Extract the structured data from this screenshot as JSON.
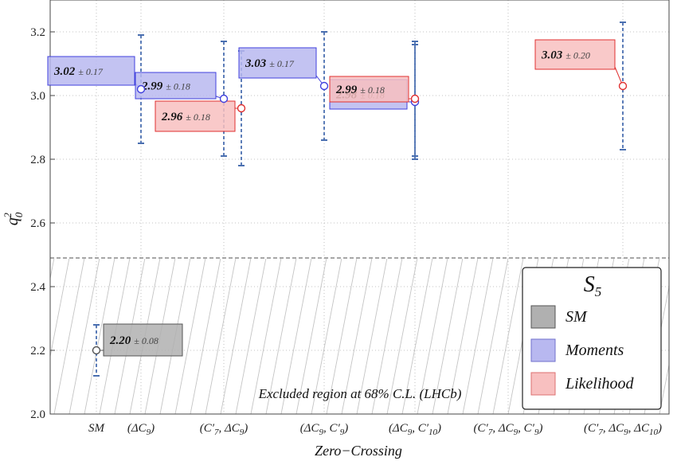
{
  "chart_data": {
    "type": "scatter",
    "title": "",
    "xlabel": "Zero−Crossing",
    "ylabel_main": "q",
    "ylabel_sup": "2",
    "ylabel_sub": "0",
    "ylim": [
      2.0,
      3.3
    ],
    "yticks": [
      "2.0",
      "2.2",
      "2.4",
      "2.6",
      "2.8",
      "3.0",
      "3.2"
    ],
    "categories": [
      {
        "label": "SM"
      },
      {
        "label": "(ΔC",
        "sub": "9",
        "tail": ")"
      },
      {
        "label": "(C′",
        "sub": "7",
        "tail": ", ΔC",
        "sub2": "9",
        "tail2": ")"
      },
      {
        "label": "(ΔC",
        "sub": "9",
        "tail": ", C′",
        "sub2": "9",
        "tail2": ")"
      },
      {
        "label": "(ΔC",
        "sub": "9",
        "tail": ", C′",
        "sub2": "10",
        "tail2": ")"
      },
      {
        "label": "(C′",
        "sub": "7",
        "tail": ", ΔC",
        "sub2": "9",
        "tail2": ", C′",
        "sub3": "9",
        "tail3": ")"
      },
      {
        "label": "(C′",
        "sub": "7",
        "tail": ", ΔC",
        "sub2": "9",
        "tail2": ", ΔC",
        "sub3": "10",
        "tail3": ")"
      }
    ],
    "series": [
      {
        "name": "SM",
        "color": "#b0b0b0",
        "stroke": "#555555",
        "points": [
          {
            "cat": 0,
            "value": 2.2,
            "err": 0.08,
            "label": "2.20",
            "errlabel": "± 0.08"
          }
        ]
      },
      {
        "name": "Moments",
        "color": "#b8b8f0",
        "stroke": "#4040dd",
        "points": [
          {
            "cat": 1,
            "value": 3.02,
            "err": 0.17,
            "label": "3.02",
            "errlabel": "± 0.17"
          },
          {
            "cat": 2,
            "value": 2.99,
            "err": 0.18,
            "label": "2.99",
            "errlabel": "± 0.18"
          },
          {
            "cat": 3,
            "value": 3.03,
            "err": 0.17,
            "label": "3.03",
            "errlabel": "± 0.17"
          },
          {
            "cat": 4,
            "value": 2.98,
            "err": 0.18,
            "label": "2.98",
            "errlabel": "± 0.18"
          }
        ]
      },
      {
        "name": "Likelihood",
        "color": "#f8c0c0",
        "stroke": "#e03030",
        "points": [
          {
            "cat": 2,
            "value": 2.96,
            "err": 0.18,
            "label": "2.96",
            "errlabel": "± 0.18"
          },
          {
            "cat": 4,
            "value": 2.99,
            "err": 0.18,
            "label": "2.99",
            "errlabel": "± 0.18"
          },
          {
            "cat": 6,
            "value": 3.03,
            "err": 0.2,
            "label": "3.03",
            "errlabel": "± 0.20"
          }
        ]
      }
    ],
    "excluded_region": {
      "ymax": 2.49,
      "label": "Excluded region at 68% C.L. (LHCb)"
    },
    "legend": {
      "title_main": "S",
      "title_sub": "5",
      "position": "bottom-right",
      "entries": [
        "SM",
        "Moments",
        "Likelihood"
      ]
    },
    "grid": true
  }
}
